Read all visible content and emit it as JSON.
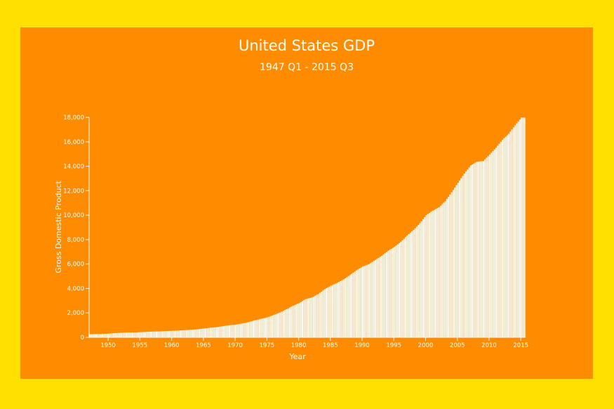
{
  "colors": {
    "background": "#FFE000",
    "card": "#FF8C00",
    "bars": "#FFFFFF",
    "text": "#FFFFFF"
  },
  "chart_data": {
    "type": "bar",
    "title": "United States GDP",
    "subtitle": "1947 Q1 - 2015 Q3",
    "xlabel": "Year",
    "ylabel": "Gross Domestic Product",
    "ylim": [
      0,
      18000
    ],
    "xlim": [
      1947.0,
      2015.75
    ],
    "grid": false,
    "y_ticks": [
      0,
      2000,
      4000,
      6000,
      8000,
      10000,
      12000,
      14000,
      16000,
      18000
    ],
    "y_tick_labels": [
      "0",
      "2,000",
      "4,000",
      "6,000",
      "8,000",
      "10,000",
      "12,000",
      "14,000",
      "16,000",
      "18,000"
    ],
    "x_ticks": [
      1950,
      1955,
      1960,
      1965,
      1970,
      1975,
      1980,
      1985,
      1990,
      1995,
      2000,
      2005,
      2010,
      2015
    ],
    "x_tick_labels": [
      "1950",
      "1955",
      "1960",
      "1965",
      "1970",
      "1975",
      "1980",
      "1985",
      "1990",
      "1995",
      "2000",
      "2005",
      "2010",
      "2015"
    ],
    "series": [
      {
        "frequency": "annual (estimated from quarterly bars)",
        "x": [
          1947,
          1948,
          1949,
          1950,
          1951,
          1952,
          1953,
          1954,
          1955,
          1956,
          1957,
          1958,
          1959,
          1960,
          1961,
          1962,
          1963,
          1964,
          1965,
          1966,
          1967,
          1968,
          1969,
          1970,
          1971,
          1972,
          1973,
          1974,
          1975,
          1976,
          1977,
          1978,
          1979,
          1980,
          1981,
          1982,
          1983,
          1984,
          1985,
          1986,
          1987,
          1988,
          1989,
          1990,
          1991,
          1992,
          1993,
          1994,
          1995,
          1996,
          1997,
          1998,
          1999,
          2000,
          2001,
          2002,
          2003,
          2004,
          2005,
          2006,
          2007,
          2008,
          2009,
          2010,
          2011,
          2012,
          2013,
          2014,
          2015
        ],
        "values": [
          250,
          270,
          275,
          300,
          345,
          370,
          390,
          390,
          425,
          450,
          475,
          480,
          515,
          530,
          550,
          590,
          620,
          660,
          720,
          790,
          835,
          915,
          990,
          1040,
          1130,
          1240,
          1390,
          1510,
          1640,
          1830,
          2040,
          2300,
          2570,
          2800,
          3130,
          3260,
          3540,
          3940,
          4220,
          4460,
          4740,
          5100,
          5480,
          5800,
          5990,
          6340,
          6670,
          7080,
          7400,
          7810,
          8330,
          8790,
          9330,
          10000,
          10350,
          10640,
          11140,
          11870,
          12640,
          13400,
          14060,
          14370,
          14420,
          14960,
          15520,
          16160,
          16660,
          17350,
          17980
        ]
      }
    ]
  }
}
